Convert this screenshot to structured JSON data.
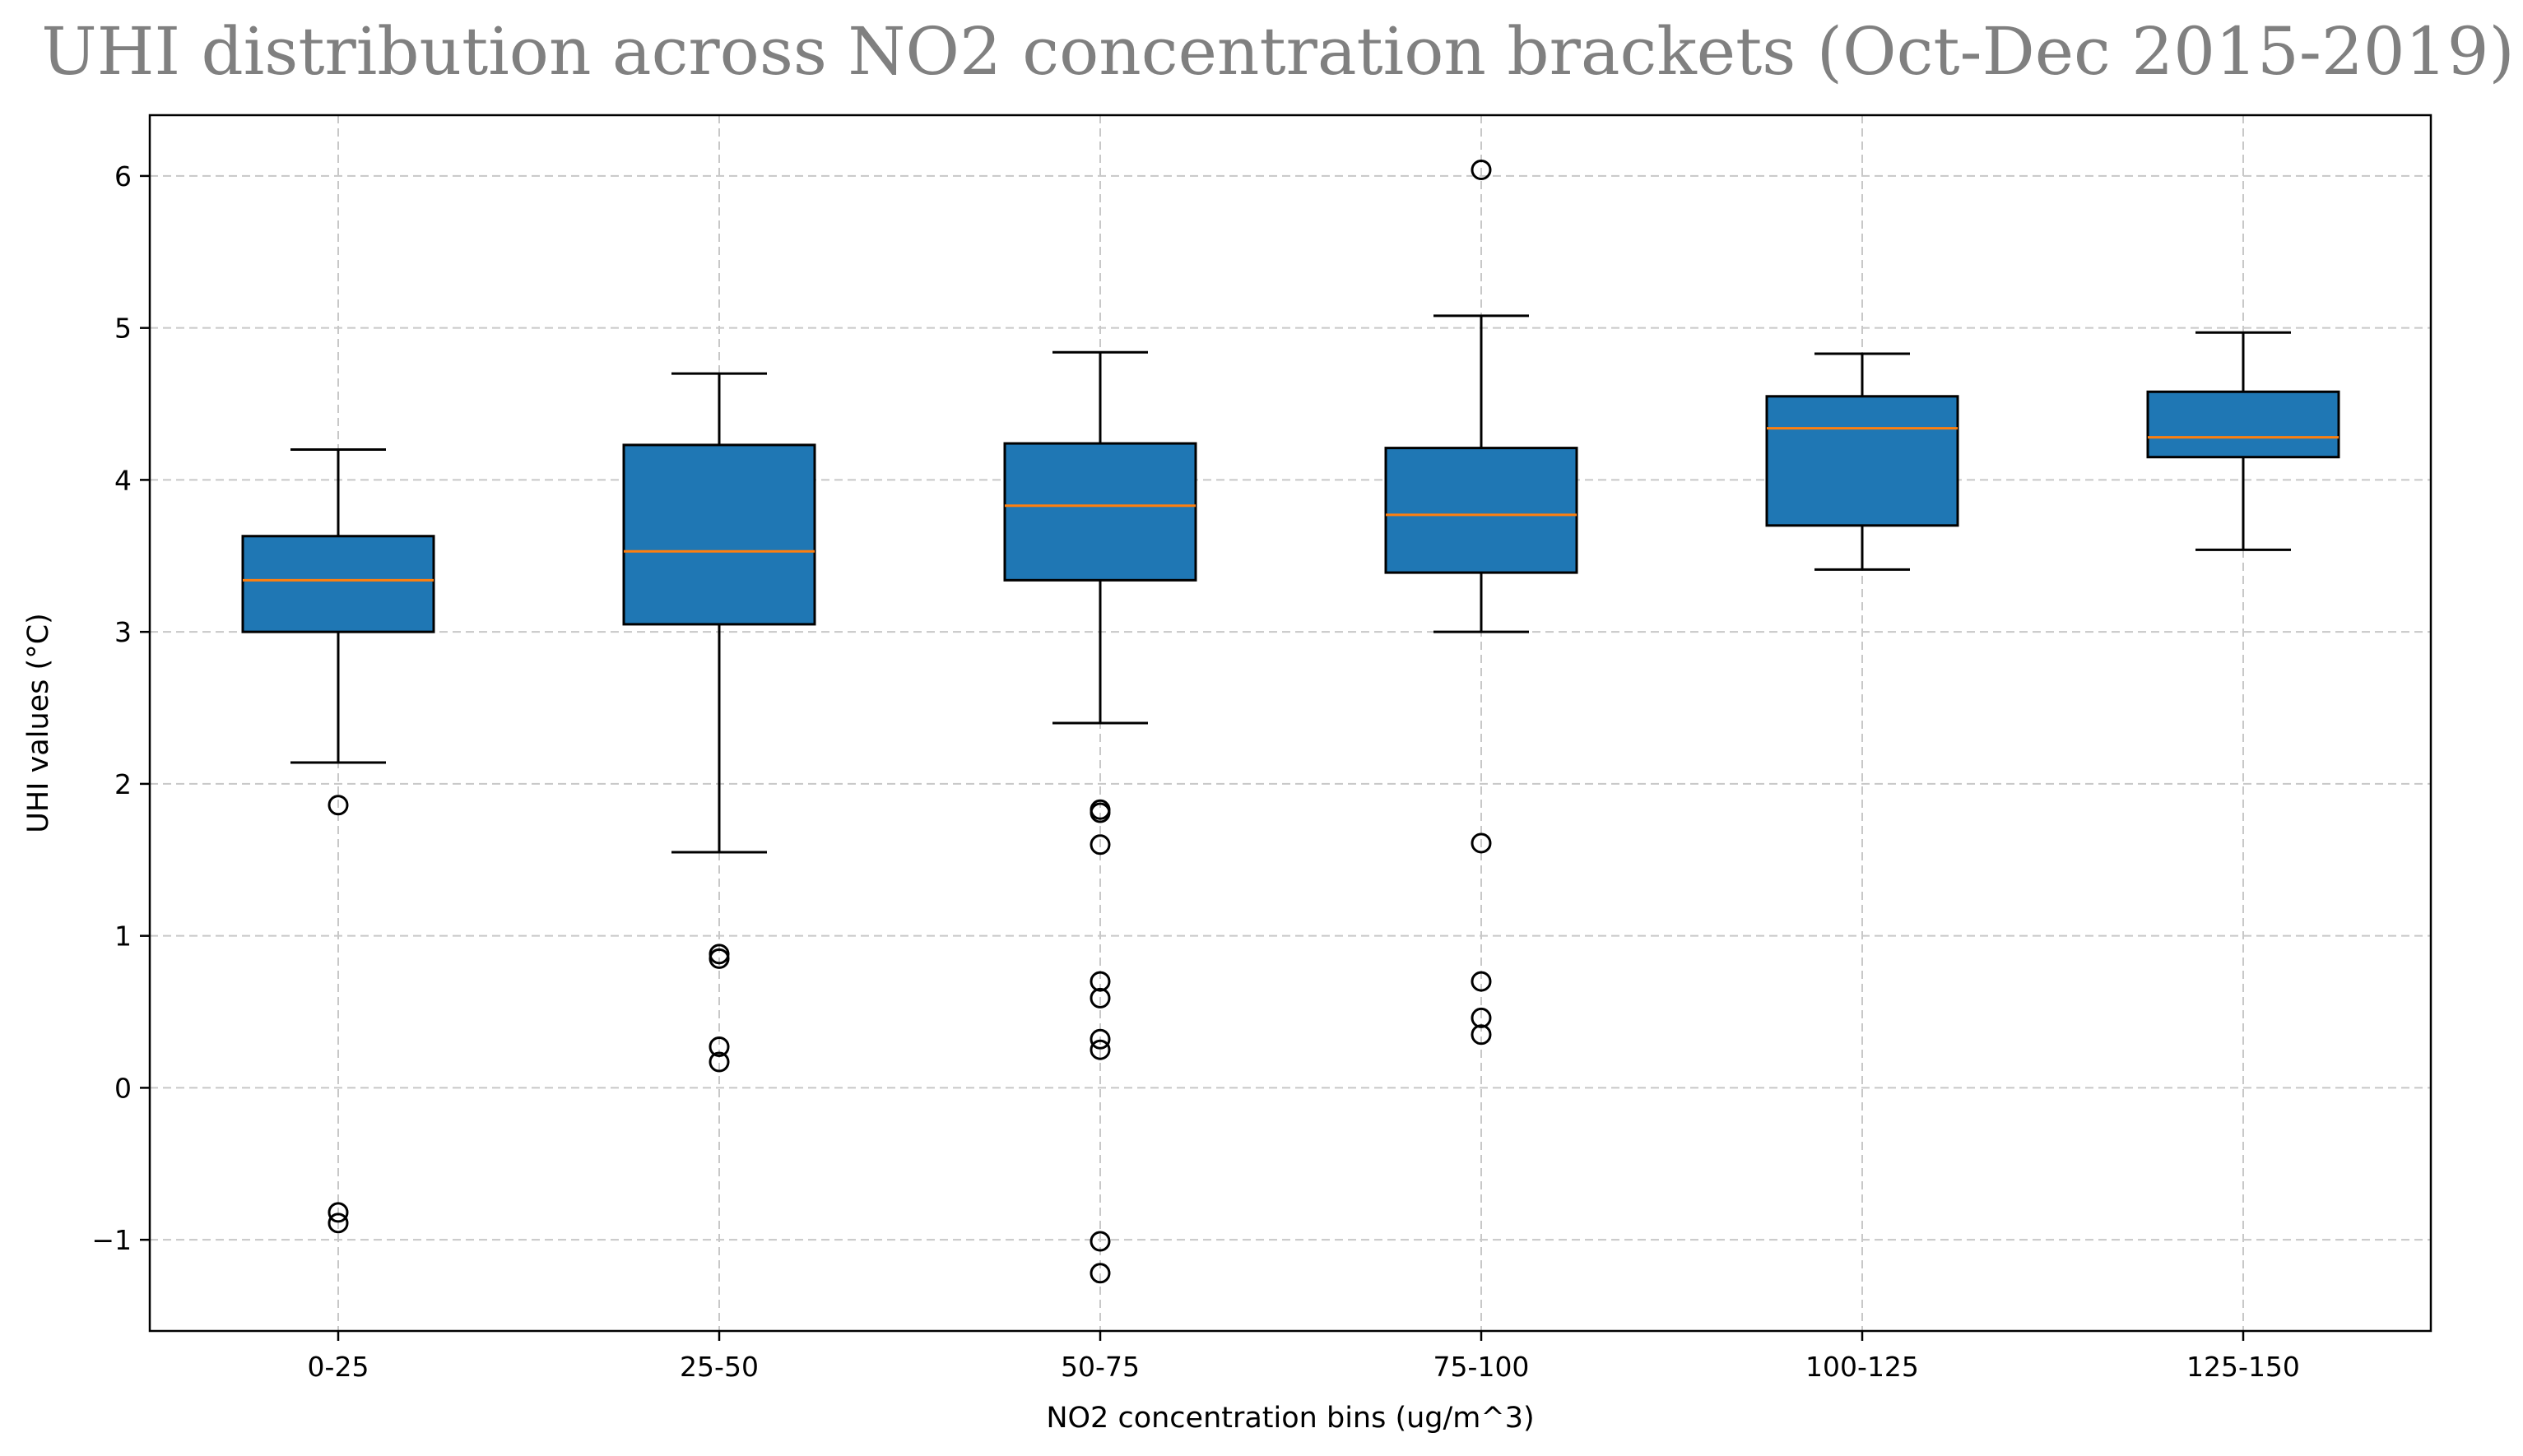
{
  "chart_data": {
    "type": "boxplot",
    "title": "UHI distribution across NO2 concentration brackets (Oct-Dec 2015-2019)",
    "xlabel": "NO2 concentration bins (ug/m^3)",
    "ylabel": "UHI values (°C)",
    "ylim": [
      -1.6,
      6.4
    ],
    "yticks": [
      -1,
      0,
      1,
      2,
      3,
      4,
      5,
      6
    ],
    "ytick_labels": [
      "−1",
      "0",
      "1",
      "2",
      "3",
      "4",
      "5",
      "6"
    ],
    "grid": true,
    "categories": [
      "0-25",
      "25-50",
      "50-75",
      "75-100",
      "100-125",
      "125-150"
    ],
    "boxes": [
      {
        "category": "0-25",
        "whislo": 2.14,
        "q1": 3.0,
        "med": 3.34,
        "q3": 3.63,
        "whishi": 4.2,
        "fliers": [
          1.86,
          -0.82,
          -0.89
        ]
      },
      {
        "category": "25-50",
        "whislo": 1.55,
        "q1": 3.05,
        "med": 3.53,
        "q3": 4.23,
        "whishi": 4.7,
        "fliers": [
          0.88,
          0.85,
          0.27,
          0.17
        ]
      },
      {
        "category": "50-75",
        "whislo": 2.4,
        "q1": 3.34,
        "med": 3.83,
        "q3": 4.24,
        "whishi": 4.84,
        "fliers": [
          1.83,
          1.81,
          1.6,
          0.7,
          0.59,
          0.32,
          0.25,
          -1.01,
          -1.22
        ]
      },
      {
        "category": "75-100",
        "whislo": 3.0,
        "q1": 3.39,
        "med": 3.77,
        "q3": 4.21,
        "whishi": 5.08,
        "fliers": [
          6.04,
          1.61,
          0.7,
          0.46,
          0.35
        ]
      },
      {
        "category": "100-125",
        "whislo": 3.41,
        "q1": 3.7,
        "med": 4.34,
        "q3": 4.55,
        "whishi": 4.83,
        "fliers": []
      },
      {
        "category": "125-150",
        "whislo": 3.54,
        "q1": 4.15,
        "med": 4.28,
        "q3": 4.58,
        "whishi": 4.97,
        "fliers": []
      }
    ],
    "colors": {
      "box_fill": "#1f77b4",
      "median": "#ff7f0e",
      "grid": "#c8c8c8"
    }
  }
}
